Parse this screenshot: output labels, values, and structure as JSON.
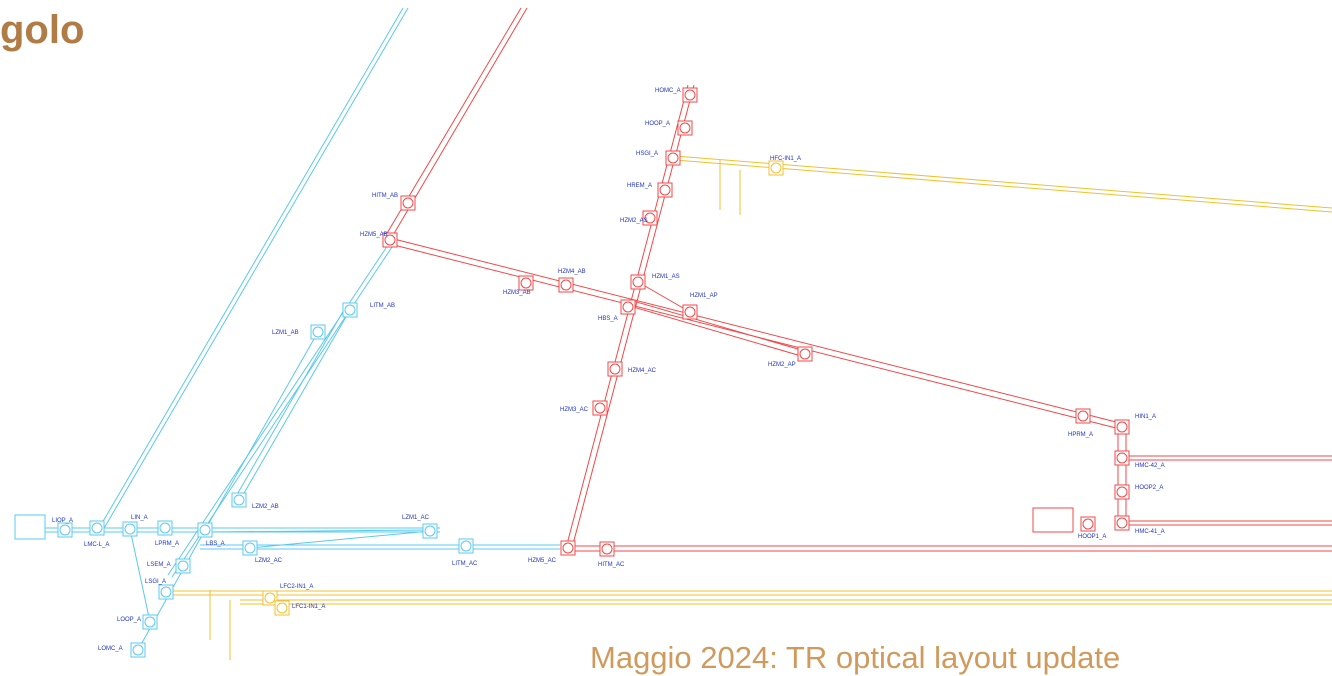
{
  "header": {
    "title": "golo"
  },
  "footer": {
    "text": "Maggio 2024: TR  optical layout update"
  },
  "nodes": [
    {
      "label": "HOMC_A"
    },
    {
      "label": "HOOP_A"
    },
    {
      "label": "HSGI_A"
    },
    {
      "label": "HFC-IN1_A"
    },
    {
      "label": "HREM_A"
    },
    {
      "label": "HZM2_AS"
    },
    {
      "label": "HITM_AB"
    },
    {
      "label": "HZM5_AB"
    },
    {
      "label": "HZM4_AB"
    },
    {
      "label": "HZM3_AB"
    },
    {
      "label": "HZM1_AS"
    },
    {
      "label": "HZM1_AP"
    },
    {
      "label": "HBS_A"
    },
    {
      "label": "HZM2_AP"
    },
    {
      "label": "HZM4_AC"
    },
    {
      "label": "HZM3_AC"
    },
    {
      "label": "HZM5_AC"
    },
    {
      "label": "HITM_AC"
    },
    {
      "label": "HIN1_A"
    },
    {
      "label": "HPRM_A"
    },
    {
      "label": "HMC-42_A"
    },
    {
      "label": "HOOP2_A"
    },
    {
      "label": "HOOP1_A"
    },
    {
      "label": "HMC-41_A"
    },
    {
      "label": "LITM_AB"
    },
    {
      "label": "LZM1_AB"
    },
    {
      "label": "LZM2_AB"
    },
    {
      "label": "LZM1_AC"
    },
    {
      "label": "LITM_AC"
    },
    {
      "label": "LZM2_AC"
    },
    {
      "label": "LBS_A"
    },
    {
      "label": "LSEM_A"
    },
    {
      "label": "LSGI_A"
    },
    {
      "label": "LOOP_A"
    },
    {
      "label": "LOMC_A"
    },
    {
      "label": "LPRM_A"
    },
    {
      "label": "LIN_A"
    },
    {
      "label": "LMC-L_A"
    },
    {
      "label": "LIOP_A"
    },
    {
      "label": "LFC2-IN1_A"
    },
    {
      "label": "LFC1-IN1_A"
    }
  ]
}
